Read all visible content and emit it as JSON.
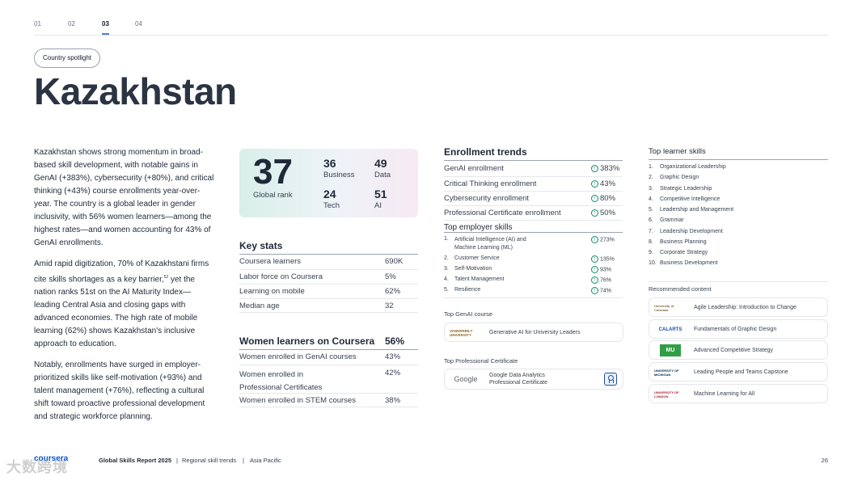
{
  "nav": {
    "tabs": [
      "01",
      "02",
      "03",
      "04"
    ],
    "active_index": 2
  },
  "pill": "Country spotlight",
  "country": "Kazakhstan",
  "intro": {
    "p1": "Kazakhstan shows strong momentum in broad-based skill development, with notable gains in GenAI (+383%), cybersecurity (+80%), and critical thinking (+43%) course enrollments year-over-year. The country is a global leader in gender inclusivity, with 56% women learners—among the highest rates—and women accounting for 43% of GenAI enrollments.",
    "p2_a": "Amid rapid digitization, 70% of Kazakhstani firms cite skills shortages as a key barrier,",
    "p2_sup": "52",
    "p2_b": " yet the nation ranks 51st on the AI Maturity Index—leading Central Asia and closing gaps with advanced economies. The high rate of mobile learning (62%) shows Kazakhstan's inclusive approach to education.",
    "p3": "Notably, enrollments have surged in employer-prioritized skills like self-motivation (+93%) and talent management (+76%), reflecting a cultural shift toward proactive professional development and strategic workforce planning."
  },
  "rank": {
    "global": "37",
    "global_label": "Global rank",
    "items": [
      {
        "value": "36",
        "label": "Business"
      },
      {
        "value": "49",
        "label": "Data"
      },
      {
        "value": "24",
        "label": "Tech"
      },
      {
        "value": "51",
        "label": "AI"
      }
    ]
  },
  "key_stats": {
    "title": "Key stats",
    "rows": [
      {
        "label": "Coursera learners",
        "value": "690K"
      },
      {
        "label": "Labor force on Coursera",
        "value": "5%"
      },
      {
        "label": "Learning on mobile",
        "value": "62%"
      },
      {
        "label": "Median age",
        "value": "32"
      }
    ]
  },
  "women": {
    "title": "Women learners on Coursera",
    "value": "56%",
    "rows": [
      {
        "label": "Women enrolled in GenAI courses",
        "value": "43%"
      },
      {
        "label": "Women enrolled in Professional Certificates",
        "value": "42%"
      },
      {
        "label": "Women enrolled in STEM courses",
        "value": "38%"
      }
    ]
  },
  "enrollment": {
    "title": "Enrollment trends",
    "rows": [
      {
        "label": "GenAI enrollment",
        "value": "383%"
      },
      {
        "label": "Critical Thinking enrollment",
        "value": "43%"
      },
      {
        "label": "Cybersecurity enrollment",
        "value": "80%"
      },
      {
        "label": "Professional Certificate enrollment",
        "value": "50%"
      }
    ]
  },
  "employer": {
    "title": "Top employer skills",
    "items": [
      {
        "rank": "1.",
        "label": "Artificial Intelligence (AI) and Machine Learning (ML)",
        "value": "273%"
      },
      {
        "rank": "2.",
        "label": "Customer Service",
        "value": "135%"
      },
      {
        "rank": "3.",
        "label": "Self-Motivation",
        "value": "93%"
      },
      {
        "rank": "4.",
        "label": "Talent Management",
        "value": "76%"
      },
      {
        "rank": "5.",
        "label": "Resilience",
        "value": "74%"
      }
    ]
  },
  "genai_course": {
    "title": "Top GenAI course",
    "name": "Generative AI for University Leaders",
    "logo": "VANDERBILT UNIVERSITY"
  },
  "prof_cert": {
    "title": "Top Professional Certificate",
    "name_1": "Google Data Analytics",
    "name_2": "Professional Certificate",
    "logo": "Google"
  },
  "learner_skills": {
    "title": "Top learner skills",
    "items": [
      {
        "rank": "1.",
        "label": "Organizational Leadership"
      },
      {
        "rank": "2.",
        "label": "Graphic Design"
      },
      {
        "rank": "3.",
        "label": "Strategic Leadership"
      },
      {
        "rank": "4.",
        "label": "Competitive Intelligence"
      },
      {
        "rank": "5.",
        "label": "Leadership and Management"
      },
      {
        "rank": "6.",
        "label": "Grammar"
      },
      {
        "rank": "7.",
        "label": "Leadership Development"
      },
      {
        "rank": "8.",
        "label": "Business Planning"
      },
      {
        "rank": "9.",
        "label": "Corporate Strategy"
      },
      {
        "rank": "10.",
        "label": "Business Development"
      }
    ]
  },
  "recommended": {
    "title": "Recommended content",
    "items": [
      {
        "logo": "University of Colorado",
        "label": "Agile Leadership: Introduction to Change",
        "logo_color": "#7a6a3a"
      },
      {
        "logo": "CALARTS",
        "label": "Fundamentals of Graphic Design",
        "logo_color": "#1b4db3"
      },
      {
        "logo": "MU",
        "label": "Advanced Competitive Strategy",
        "logo_color": "#2f9e44"
      },
      {
        "logo": "UNIVERSITY OF MICHIGAN",
        "label": "Leading People and Teams Capstone",
        "logo_color": "#00274c"
      },
      {
        "logo": "UNIVERSITY OF LONDON",
        "label": "Machine Learning for All",
        "logo_color": "#b11b2b"
      }
    ]
  },
  "footer": {
    "brand": "coursera",
    "report": "Global Skills Report 2025",
    "crumb1": "Regional skill trends",
    "crumb2": "Asia Pacific",
    "page": "26",
    "watermark": "大数跨境"
  }
}
